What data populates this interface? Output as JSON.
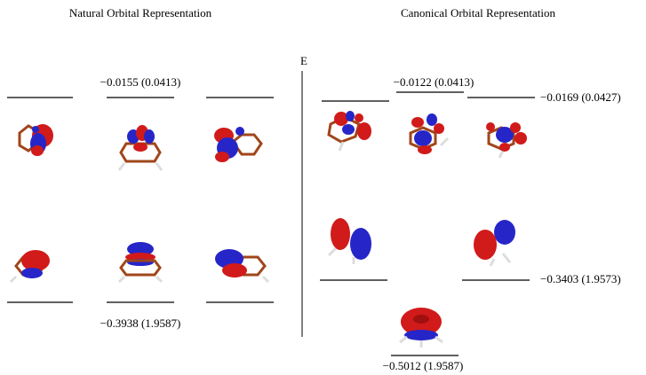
{
  "titles": {
    "natural": "Natural Orbital Representation",
    "canonical": "Canonical Orbital Representation"
  },
  "axis_label": "E",
  "levels": {
    "natural": [
      "−0.0155 (0.0413)",
      "−0.3938 (1.9587)"
    ],
    "canonical": [
      "−0.0122 (0.0413)",
      "−0.0169 (0.0427)",
      "−0.3403 (1.9573)",
      "−0.5012 (1.9587)"
    ]
  }
}
